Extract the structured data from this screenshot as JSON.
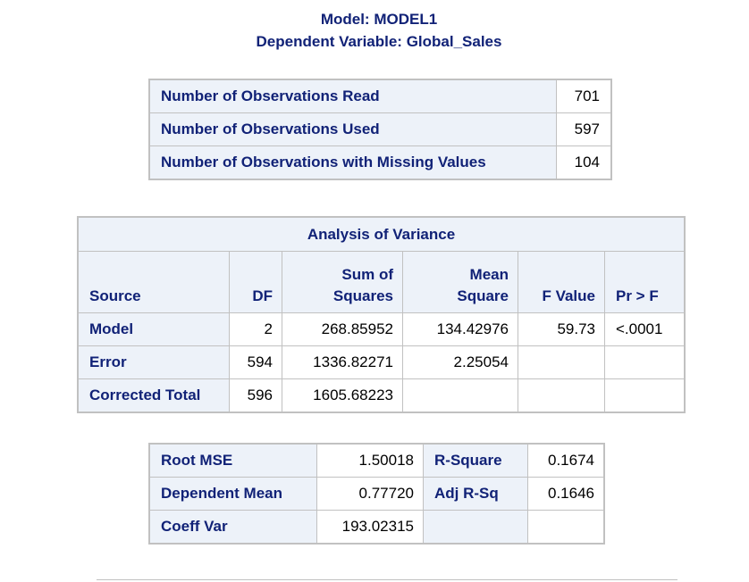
{
  "titles": {
    "model": "Model: MODEL1",
    "dependent": "Dependent Variable: Global_Sales"
  },
  "observations": [
    {
      "label": "Number of Observations Read",
      "value": "701"
    },
    {
      "label": "Number of Observations Used",
      "value": "597"
    },
    {
      "label": "Number of Observations with Missing Values",
      "value": "104"
    }
  ],
  "anova": {
    "caption": "Analysis of Variance",
    "headers": {
      "source": "Source",
      "df": "DF",
      "ss_top": "Sum of",
      "ss_bottom": "Squares",
      "ms_top": "Mean",
      "ms_bottom": "Square",
      "f": "F Value",
      "p": "Pr > F"
    },
    "rows": [
      {
        "source": "Model",
        "df": "2",
        "ss": "268.85952",
        "ms": "134.42976",
        "f": "59.73",
        "p": "<.0001"
      },
      {
        "source": "Error",
        "df": "594",
        "ss": "1336.82271",
        "ms": "2.25054",
        "f": "",
        "p": ""
      },
      {
        "source": "Corrected Total",
        "df": "596",
        "ss": "1605.68223",
        "ms": "",
        "f": "",
        "p": ""
      }
    ]
  },
  "fit_stats": [
    {
      "label": "Root MSE",
      "value": "1.50018",
      "label2": "R-Square",
      "value2": "0.1674"
    },
    {
      "label": "Dependent Mean",
      "value": "0.77720",
      "label2": "Adj R-Sq",
      "value2": "0.1646"
    },
    {
      "label": "Coeff Var",
      "value": "193.02315",
      "label2": "",
      "value2": ""
    }
  ]
}
